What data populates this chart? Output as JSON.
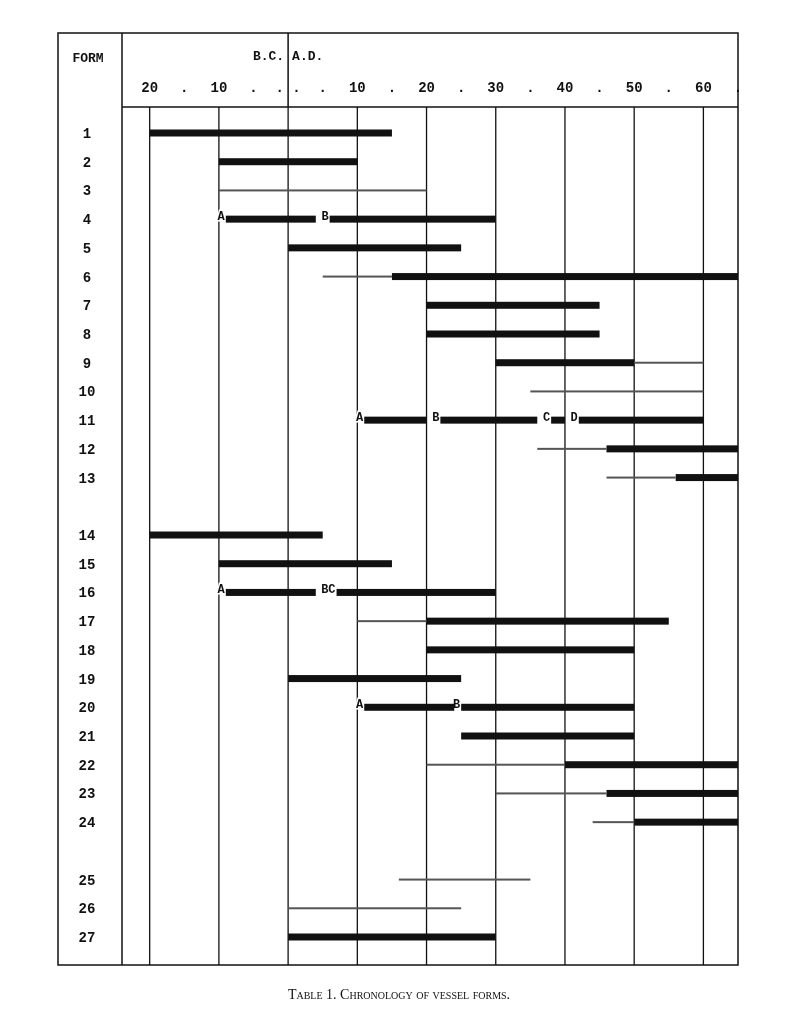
{
  "chart_data": {
    "type": "bar",
    "orientation": "horizontal",
    "title": "Table 1. Chronology of vessel forms.",
    "ylabel": "FORM",
    "annotations": [
      "B.C.",
      "A.D."
    ],
    "categories": [
      "1",
      "2",
      "3",
      "4",
      "5",
      "6",
      "7",
      "8",
      "9",
      "10",
      "11",
      "12",
      "13",
      null,
      "14",
      "15",
      "16",
      "17",
      "18",
      "19",
      "20",
      "21",
      "22",
      "23",
      "24",
      null,
      "25",
      "26",
      "27"
    ],
    "xlim": [
      -24,
      65
    ],
    "xticks": [
      {
        "value": -20,
        "label": "20"
      },
      {
        "value": -15,
        "label": "."
      },
      {
        "value": -10,
        "label": "10"
      },
      {
        "value": -5,
        "label": "."
      },
      {
        "value": 0,
        "label": ". ."
      },
      {
        "value": 5,
        "label": "."
      },
      10,
      {
        "value": 15,
        "label": "."
      },
      20,
      {
        "value": 25,
        "label": "."
      },
      30,
      {
        "value": 35,
        "label": "."
      },
      40,
      {
        "value": 45,
        "label": "."
      },
      50,
      {
        "value": 55,
        "label": "."
      },
      60,
      {
        "value": 65,
        "label": "."
      }
    ],
    "grid": "x",
    "series": [
      {
        "color": "#555555",
        "base": [
          null,
          null,
          -10,
          null,
          null,
          5,
          null,
          null,
          50,
          35,
          null,
          36,
          46,
          null,
          null,
          null,
          null,
          10,
          null,
          null,
          null,
          null,
          20,
          30,
          44,
          null,
          16,
          0,
          null
        ],
        "values": [
          null,
          null,
          30,
          null,
          null,
          10,
          null,
          null,
          10,
          25,
          null,
          10,
          10,
          null,
          null,
          null,
          null,
          10,
          null,
          null,
          null,
          null,
          20,
          16,
          6,
          null,
          19,
          25,
          null
        ]
      },
      {
        "color": "#111111",
        "base": [
          -20,
          -10,
          null,
          -9,
          0,
          15,
          20,
          20,
          30,
          null,
          11,
          46,
          56,
          null,
          -20,
          -10,
          -9,
          20,
          20,
          0,
          11,
          25,
          40,
          46,
          50,
          null,
          null,
          null,
          0
        ],
        "values": [
          35,
          20,
          null,
          13,
          25,
          50,
          25,
          25,
          20,
          null,
          9,
          19,
          9,
          null,
          25,
          25,
          13,
          35,
          30,
          25,
          13,
          25,
          25,
          19,
          15,
          null,
          null,
          null,
          30
        ],
        "value_labels": [
          null,
          null,
          null,
          "A",
          null,
          null,
          null,
          null,
          null,
          null,
          "A",
          null,
          null,
          null,
          null,
          null,
          "A",
          null,
          null,
          null,
          "A",
          null,
          null,
          null,
          null,
          null,
          null,
          null,
          null
        ]
      },
      {
        "color": "#111111",
        "base": [
          null,
          null,
          null,
          6,
          null,
          null,
          null,
          null,
          null,
          null,
          22,
          null,
          null,
          null,
          null,
          null,
          7,
          null,
          null,
          null,
          25,
          null,
          null,
          null,
          null,
          null,
          null,
          null,
          null
        ],
        "values": [
          null,
          null,
          null,
          24,
          null,
          null,
          null,
          null,
          null,
          null,
          14,
          null,
          null,
          null,
          null,
          null,
          23,
          null,
          null,
          null,
          25,
          null,
          null,
          null,
          null,
          null,
          null,
          null,
          null
        ],
        "value_labels": [
          null,
          null,
          null,
          "B",
          null,
          null,
          null,
          null,
          null,
          null,
          "B",
          null,
          null,
          null,
          null,
          null,
          "BC",
          null,
          null,
          null,
          "B",
          null,
          null,
          null,
          null,
          null,
          null,
          null,
          null
        ]
      },
      {
        "color": "#111111",
        "base": [
          null,
          null,
          null,
          null,
          null,
          null,
          null,
          null,
          null,
          null,
          38,
          null,
          null,
          null,
          null,
          null,
          null,
          null,
          null,
          null,
          null,
          null,
          null,
          null,
          null,
          null,
          null,
          null,
          null
        ],
        "values": [
          null,
          null,
          null,
          null,
          null,
          null,
          null,
          null,
          null,
          null,
          2,
          null,
          null,
          null,
          null,
          null,
          null,
          null,
          null,
          null,
          null,
          null,
          null,
          null,
          null,
          null,
          null,
          null,
          null
        ],
        "value_labels": [
          null,
          null,
          null,
          null,
          null,
          null,
          null,
          null,
          null,
          null,
          "C",
          null,
          null,
          null,
          null,
          null,
          null,
          null,
          null,
          null,
          null,
          null,
          null,
          null,
          null,
          null,
          null,
          null,
          null
        ]
      },
      {
        "color": "#111111",
        "base": [
          null,
          null,
          null,
          null,
          null,
          null,
          null,
          null,
          null,
          null,
          42,
          null,
          null,
          null,
          null,
          null,
          null,
          null,
          null,
          null,
          null,
          null,
          null,
          null,
          null,
          null,
          null,
          null,
          null
        ],
        "values": [
          null,
          null,
          null,
          null,
          null,
          null,
          null,
          null,
          null,
          null,
          18,
          null,
          null,
          null,
          null,
          null,
          null,
          null,
          null,
          null,
          null,
          null,
          null,
          null,
          null,
          null,
          null,
          null,
          null
        ],
        "value_labels": [
          null,
          null,
          null,
          null,
          null,
          null,
          null,
          null,
          null,
          null,
          "D",
          null,
          null,
          null,
          null,
          null,
          null,
          null,
          null,
          null,
          null,
          null,
          null,
          null,
          null,
          null,
          null,
          null,
          null
        ]
      }
    ]
  }
}
